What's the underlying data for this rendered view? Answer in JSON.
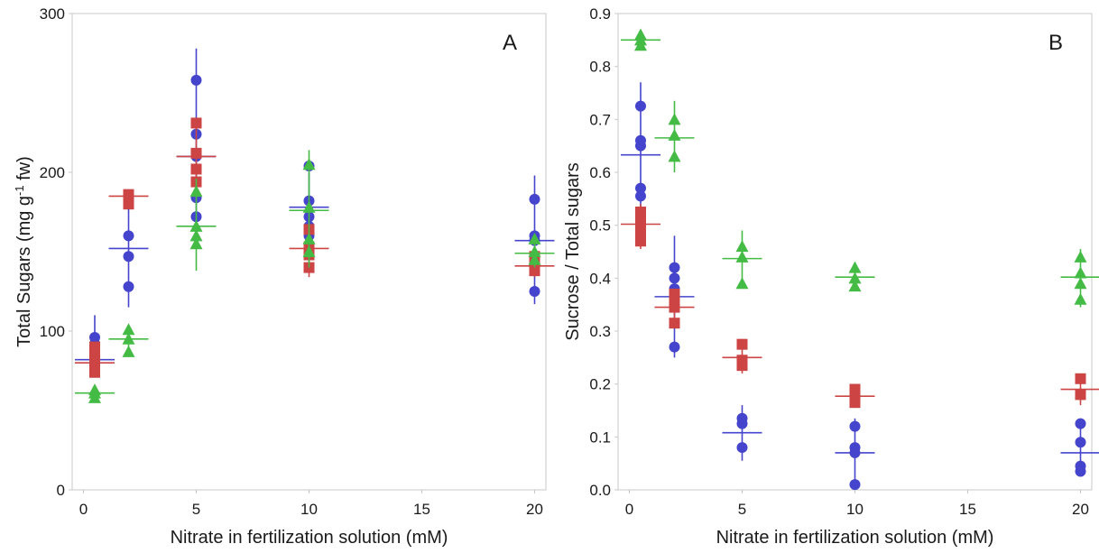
{
  "colors": {
    "blue": "#4444cc",
    "red": "#cc4444",
    "green": "#44bb44"
  },
  "chart_data": [
    {
      "panel": "A",
      "type": "scatter",
      "title": "",
      "xlabel": "Nitrate in fertilization solution (mM)",
      "ylabel_main": "Total Sugars (mg g",
      "ylabel_sup": "-1",
      "ylabel_tail": " fw)",
      "xlim": [
        -0.5,
        20.5
      ],
      "ylim": [
        0,
        300
      ],
      "xticks": [
        0,
        5,
        10,
        15,
        20
      ],
      "yticks": [
        0,
        100,
        200,
        300
      ],
      "grid": false,
      "series": [
        {
          "color": "blue",
          "marker": "circle",
          "groups": [
            {
              "x": 0.5,
              "points": [
                96,
                92,
                88,
                84,
                80,
                78
              ],
              "mean": 82,
              "err": [
                75,
                110
              ]
            },
            {
              "x": 2,
              "points": [
                180,
                160,
                147,
                128
              ],
              "mean": 152,
              "err": [
                115,
                185
              ]
            },
            {
              "x": 5,
              "points": [
                258,
                224,
                210,
                184,
                172
              ],
              "mean": 210,
              "err": [
                165,
                278
              ]
            },
            {
              "x": 10,
              "points": [
                204,
                182,
                172,
                166,
                160
              ],
              "mean": 178,
              "err": [
                150,
                200
              ]
            },
            {
              "x": 20,
              "points": [
                183,
                160,
                157,
                146,
                125
              ],
              "mean": 157,
              "err": [
                117,
                198
              ]
            }
          ]
        },
        {
          "color": "red",
          "marker": "square",
          "groups": [
            {
              "x": 0.5,
              "points": [
                90,
                86,
                82,
                78,
                74
              ],
              "mean": 80,
              "err": [
                74,
                92
              ]
            },
            {
              "x": 2,
              "points": [
                186,
                183,
                180
              ],
              "mean": 185,
              "err": [
                178,
                188
              ]
            },
            {
              "x": 5,
              "points": [
                231,
                212,
                202,
                194
              ],
              "mean": 210,
              "err": [
                190,
                232
              ]
            },
            {
              "x": 10,
              "points": [
                164,
                153,
                148,
                140
              ],
              "mean": 152,
              "err": [
                134,
                166
              ]
            },
            {
              "x": 20,
              "points": [
                147,
                141,
                138
              ],
              "mean": 141,
              "err": [
                134,
                150
              ]
            }
          ]
        },
        {
          "color": "green",
          "marker": "triangle",
          "groups": [
            {
              "x": 0.5,
              "points": [
                63,
                61,
                58
              ],
              "mean": 61,
              "err": [
                56,
                66
              ]
            },
            {
              "x": 2,
              "points": [
                101,
                95,
                87
              ],
              "mean": 95,
              "err": [
                86,
                102
              ]
            },
            {
              "x": 5,
              "points": [
                188,
                166,
                160,
                155
              ],
              "mean": 166,
              "err": [
                138,
                196
              ]
            },
            {
              "x": 10,
              "points": [
                205,
                178,
                158,
                150
              ],
              "mean": 176,
              "err": [
                140,
                214
              ]
            },
            {
              "x": 20,
              "points": [
                158,
                150,
                145
              ],
              "mean": 149,
              "err": [
                140,
                160
              ]
            }
          ]
        }
      ]
    },
    {
      "panel": "B",
      "type": "scatter",
      "title": "",
      "xlabel": "Nitrate in fertilization solution (mM)",
      "ylabel_main": "Sucrose / Total sugars",
      "ylabel_sup": "",
      "ylabel_tail": "",
      "xlim": [
        -0.5,
        20.5
      ],
      "ylim": [
        0,
        0.9
      ],
      "xticks": [
        0,
        5,
        10,
        15,
        20
      ],
      "yticks": [
        0.0,
        0.1,
        0.2,
        0.3,
        0.4,
        0.5,
        0.6,
        0.7,
        0.8,
        0.9
      ],
      "grid": false,
      "series": [
        {
          "color": "blue",
          "marker": "circle",
          "groups": [
            {
              "x": 0.5,
              "points": [
                0.725,
                0.66,
                0.65,
                0.57,
                0.555
              ],
              "mean": 0.633,
              "err": [
                0.5,
                0.77
              ]
            },
            {
              "x": 2,
              "points": [
                0.42,
                0.4,
                0.38,
                0.35,
                0.27
              ],
              "mean": 0.365,
              "err": [
                0.25,
                0.48
              ]
            },
            {
              "x": 5,
              "points": [
                0.135,
                0.125,
                0.08
              ],
              "mean": 0.108,
              "err": [
                0.055,
                0.16
              ]
            },
            {
              "x": 10,
              "points": [
                0.12,
                0.08,
                0.07,
                0.01
              ],
              "mean": 0.07,
              "err": [
                0.0,
                0.135
              ]
            },
            {
              "x": 20,
              "points": [
                0.125,
                0.09,
                0.045,
                0.035
              ],
              "mean": 0.07,
              "err": [
                0.03,
                0.125
              ]
            }
          ]
        },
        {
          "color": "red",
          "marker": "square",
          "groups": [
            {
              "x": 0.5,
              "points": [
                0.525,
                0.51,
                0.49,
                0.47
              ],
              "mean": 0.502,
              "err": [
                0.455,
                0.54
              ]
            },
            {
              "x": 2,
              "points": [
                0.37,
                0.355,
                0.345,
                0.315
              ],
              "mean": 0.345,
              "err": [
                0.305,
                0.375
              ]
            },
            {
              "x": 5,
              "points": [
                0.275,
                0.245,
                0.235
              ],
              "mean": 0.25,
              "err": [
                0.22,
                0.285
              ]
            },
            {
              "x": 10,
              "points": [
                0.19,
                0.17,
                0.165
              ],
              "mean": 0.177,
              "err": [
                0.155,
                0.195
              ]
            },
            {
              "x": 20,
              "points": [
                0.21,
                0.18
              ],
              "mean": 0.19,
              "err": [
                0.16,
                0.22
              ]
            }
          ]
        },
        {
          "color": "green",
          "marker": "triangle",
          "groups": [
            {
              "x": 0.5,
              "points": [
                0.86,
                0.85,
                0.84
              ],
              "mean": 0.85,
              "err": [
                0.835,
                0.865
              ]
            },
            {
              "x": 2,
              "points": [
                0.7,
                0.67,
                0.63
              ],
              "mean": 0.665,
              "err": [
                0.6,
                0.735
              ]
            },
            {
              "x": 5,
              "points": [
                0.46,
                0.44,
                0.39
              ],
              "mean": 0.437,
              "err": [
                0.385,
                0.49
              ]
            },
            {
              "x": 10,
              "points": [
                0.42,
                0.4,
                0.385
              ],
              "mean": 0.402,
              "err": [
                0.375,
                0.43
              ]
            },
            {
              "x": 20,
              "points": [
                0.44,
                0.41,
                0.39,
                0.36
              ],
              "mean": 0.402,
              "err": [
                0.345,
                0.455
              ]
            }
          ]
        }
      ]
    }
  ]
}
